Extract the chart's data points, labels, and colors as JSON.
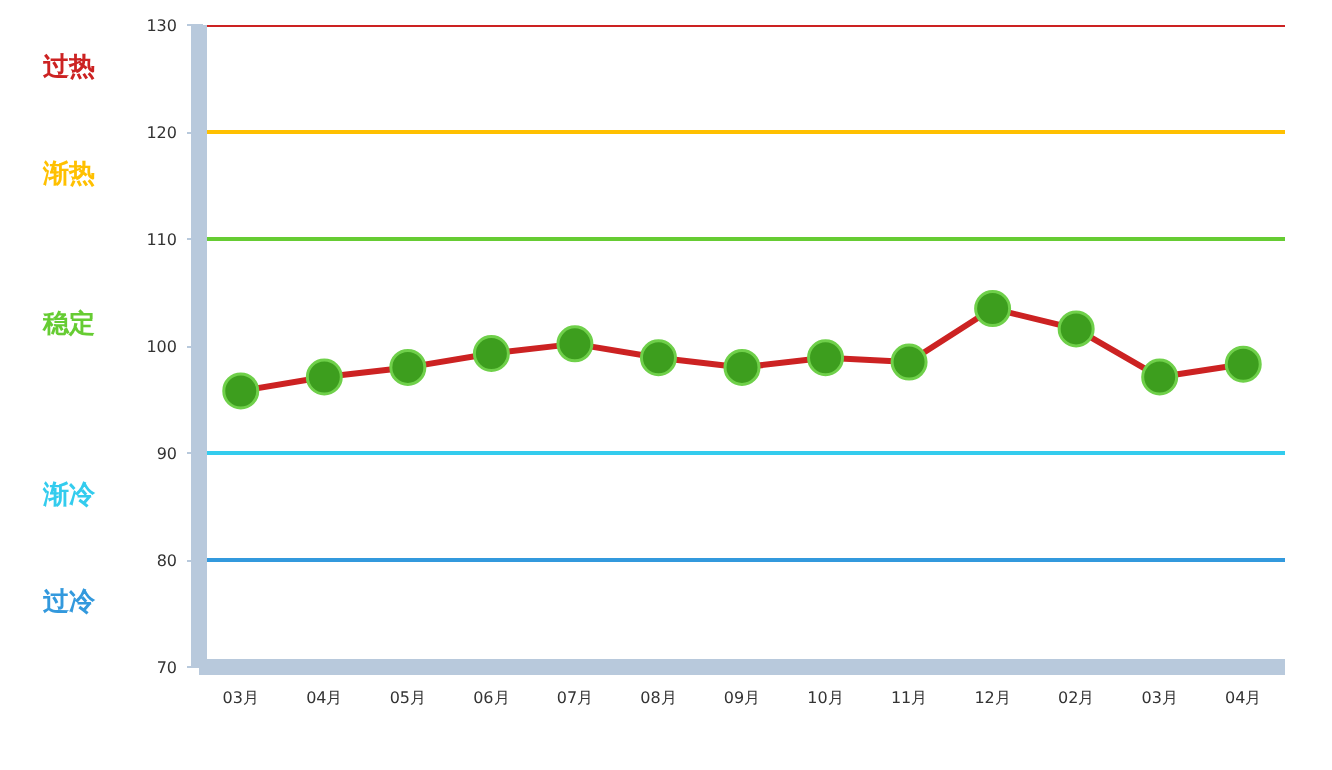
{
  "chart_data": {
    "type": "line",
    "categories": [
      "03月",
      "04月",
      "05月",
      "06月",
      "07月",
      "08月",
      "09月",
      "10月",
      "11月",
      "12月",
      "02月",
      "03月",
      "04月"
    ],
    "series": [
      {
        "color": "#cc2222",
        "values": [
          95.8,
          97.1,
          98.0,
          99.3,
          100.2,
          98.9,
          98.0,
          98.9,
          98.5,
          103.5,
          101.6,
          97.1,
          98.3
        ]
      }
    ],
    "ylim": [
      70,
      130
    ],
    "yticks": [
      70,
      80,
      90,
      100,
      110,
      120,
      130
    ],
    "grid": false,
    "marker": "circle",
    "line_style": "solid",
    "ref_lines": [
      {
        "axis": "y",
        "value": 130,
        "color": "#cc2222"
      },
      {
        "axis": "y",
        "value": 120,
        "color": "#ffc000"
      },
      {
        "axis": "y",
        "value": 110,
        "color": "#66cc33"
      },
      {
        "axis": "y",
        "value": 90,
        "color": "#33ccee"
      },
      {
        "axis": "y",
        "value": 80,
        "color": "#3399dd"
      }
    ],
    "annotations": [
      "过热",
      "渐热",
      "稳定",
      "渐冷",
      "过冷"
    ]
  }
}
